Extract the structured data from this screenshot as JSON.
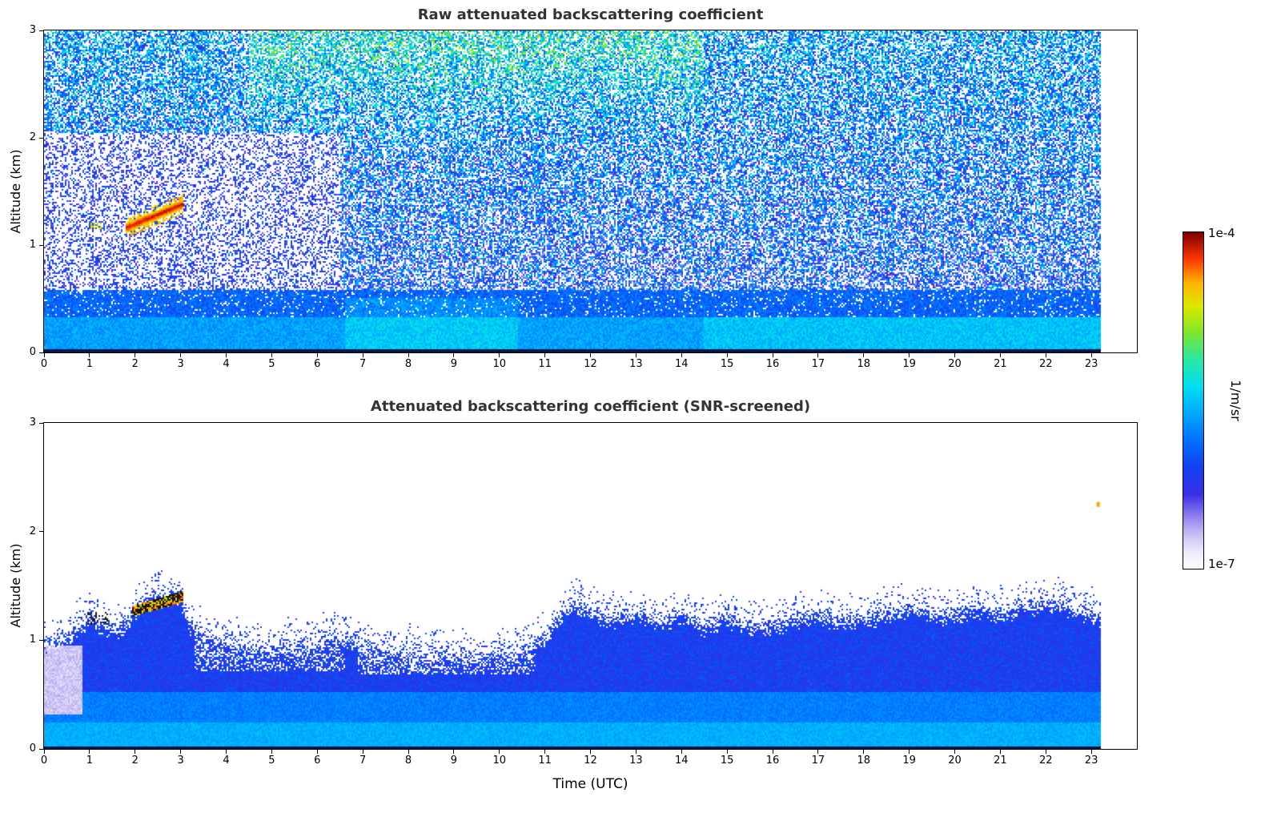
{
  "figure": {
    "background": "#ffffff",
    "colorbar": {
      "top_label": "1e-4",
      "bottom_label": "1e-7",
      "unit_label": "1/m/sr"
    }
  },
  "colormap": {
    "scale": "log",
    "vmin": 1e-07,
    "vmax": 0.0001,
    "stops": [
      [
        0.0,
        "#ffffff"
      ],
      [
        0.05,
        "#eceafb"
      ],
      [
        0.1,
        "#c8c0f4"
      ],
      [
        0.16,
        "#8a7aec"
      ],
      [
        0.22,
        "#3b2ee4"
      ],
      [
        0.3,
        "#1440f0"
      ],
      [
        0.38,
        "#0070ff"
      ],
      [
        0.46,
        "#00a8ff"
      ],
      [
        0.54,
        "#00ddf2"
      ],
      [
        0.62,
        "#2ae8a8"
      ],
      [
        0.7,
        "#7ce62e"
      ],
      [
        0.78,
        "#dce800"
      ],
      [
        0.85,
        "#ffb400"
      ],
      [
        0.92,
        "#ff3800"
      ],
      [
        1.0,
        "#7e0000"
      ]
    ]
  },
  "chart_data": [
    {
      "type": "heatmap",
      "title": "Raw attenuated backscattering coefficient",
      "xlabel": "",
      "ylabel": "Altitude (km)",
      "xlim": [
        0,
        24
      ],
      "ylim": [
        0,
        3
      ],
      "xticks": [
        0,
        1,
        2,
        3,
        4,
        5,
        6,
        7,
        8,
        9,
        10,
        11,
        12,
        13,
        14,
        15,
        16,
        17,
        18,
        19,
        20,
        21,
        22,
        23
      ],
      "yticks": [
        0,
        1,
        2,
        3
      ],
      "value_scale": {
        "type": "log",
        "min": "1e-7",
        "max": "1e-4",
        "unit": "1/m/sr"
      },
      "features": [
        "Noisy speckle field above the boundary layer, cyan-green toward the top, denser between 05-15 UTC",
        "Whiter sparse region with dark blue speckle for 00-06:30 UTC between 0.6 and 2 km",
        "Strong red/dark-red elevated layer rising from ~1.15 km at 01:50 UTC to ~1.4 km at 03:00 UTC",
        "Solid blue/cyan boundary layer below ~0.6 km all day; data end ~23:10 UTC"
      ],
      "render": {
        "seed": 1234,
        "cell": 2,
        "data_end": 23.2,
        "ground": {
          "dark_line_alt": 0.03,
          "band1_alt": 0.33,
          "band1_v": 0.45,
          "band2_alt": 0.58,
          "band2_v": 0.36,
          "bright_zones": [
            {
              "t0": 6.6,
              "t1": 10.4,
              "a": 0.5,
              "dv": 0.06
            },
            {
              "t0": 14.5,
              "t1": 23.2,
              "a": 0.33,
              "dv": 0.05
            }
          ]
        },
        "noise": {
          "base_p": 0.62,
          "col_var": 0.14,
          "c0": 0.3,
          "c_rise": 0.13,
          "spread": 0.2,
          "fleck_p": 0.012,
          "fleck_dv": 0.15,
          "sparse": {
            "t0": 0,
            "t1": 6.5,
            "a0": 0.58,
            "a1": 2.05,
            "p": 0.34,
            "c": 0.27,
            "spread": 0.1
          },
          "green": {
            "t0": 4.5,
            "t1": 14.5,
            "a0": 1.9,
            "dv": 0.12
          }
        },
        "plume": {
          "t0": 1.8,
          "t1": 3.05,
          "a0": 1.16,
          "a1": 1.38,
          "halfw": 0.05,
          "v_core": 0.97,
          "v_edge": 0.84
        },
        "streak": {
          "t0": 1.02,
          "t1": 1.25,
          "a": 1.18,
          "halfw": 0.025,
          "p": 0.5,
          "v": 0.8
        }
      }
    },
    {
      "type": "heatmap",
      "title": "Attenuated backscattering coefficient (SNR-screened)",
      "xlabel": "Time (UTC)",
      "ylabel": "Altitude (km)",
      "xlim": [
        0,
        24
      ],
      "ylim": [
        0,
        3
      ],
      "xticks": [
        0,
        1,
        2,
        3,
        4,
        5,
        6,
        7,
        8,
        9,
        10,
        11,
        12,
        13,
        14,
        15,
        16,
        17,
        18,
        19,
        20,
        21,
        22,
        23
      ],
      "yticks": [
        0,
        1,
        2,
        3
      ],
      "value_scale": {
        "type": "log",
        "min": "1e-7",
        "max": "1e-4",
        "unit": "1/m/sr"
      },
      "features": [
        "Screened field: white above the boundary layer",
        "Boundary-layer top ~0.9-1.0 km in the morning, dipping ~0.8 km near 07-10 UTC, rising to ~1.1-1.3 km after 11 UTC",
        "Black/dark elevated layer with yellow-green flecks from ~1.27 km at 02:00 UTC to ~1.4 km at 03:00 UTC",
        "Pale lavender low-signal patch near 00:00-00:50 UTC between 0.3 and 0.95 km",
        "Tiny orange speck near 23:10 UTC at ~2.25 km"
      ],
      "render": {
        "seed": 99,
        "cell": 2,
        "data_end": 23.2,
        "layer_top": {
          "t": [
            0,
            0.5,
            1,
            1.3,
            1.7,
            2,
            2.3,
            2.7,
            3,
            3.2,
            3.5,
            4,
            4.5,
            5,
            5.5,
            6,
            6.3,
            6.6,
            7,
            7.5,
            8,
            8.5,
            9,
            9.5,
            10,
            10.5,
            11,
            11.3,
            11.6,
            12,
            12.5,
            13,
            13.5,
            14,
            14.5,
            15,
            15.5,
            16,
            16.5,
            17,
            17.5,
            18,
            18.5,
            19,
            19.5,
            20,
            20.5,
            21,
            21.5,
            22,
            22.5,
            23,
            23.2
          ],
          "h": [
            0.95,
            1.0,
            1.2,
            1.12,
            1.08,
            1.25,
            1.38,
            1.4,
            1.36,
            1.12,
            1.02,
            0.98,
            0.92,
            0.9,
            0.95,
            0.92,
            1.05,
            1.0,
            0.95,
            0.88,
            0.9,
            0.85,
            0.88,
            0.82,
            0.86,
            0.9,
            1.0,
            1.18,
            1.3,
            1.25,
            1.18,
            1.22,
            1.15,
            1.22,
            1.12,
            1.18,
            1.1,
            1.12,
            1.18,
            1.22,
            1.15,
            1.18,
            1.22,
            1.28,
            1.22,
            1.22,
            1.28,
            1.22,
            1.28,
            1.32,
            1.28,
            1.22,
            1.2
          ]
        },
        "edge": {
          "jitter": 0.09,
          "speckle_band": 0.2,
          "speckle_p": 0.15
        },
        "bands": {
          "dark_line_alt": 0.02,
          "bottom_alt": 0.25,
          "bottom_v": 0.47,
          "mid_alt": 0.52,
          "mid_v": 0.4,
          "top_v": 0.29,
          "top_spread": 0.05
        },
        "holes": [
          {
            "t0": 3.3,
            "t1": 6.6,
            "a0": 0.72,
            "p": 0.3
          },
          {
            "t0": 6.9,
            "t1": 10.8,
            "a0": 0.68,
            "p": 0.35
          }
        ],
        "light_patch": {
          "t0": 0.0,
          "t1": 0.85,
          "a0": 0.32,
          "a1": 0.95,
          "v": 0.06,
          "spread": 0.06
        },
        "plume": {
          "t0": 1.95,
          "t1": 3.05,
          "a0": 1.27,
          "a1": 1.4,
          "halfw": 0.05,
          "dark_p": 0.55
        },
        "pre_specks": {
          "t0": 0.95,
          "t1": 1.4,
          "a": 1.2,
          "halfw": 0.06,
          "p": 0.3
        },
        "orange_dot": {
          "t": 23.15,
          "a": 2.25
        }
      }
    }
  ]
}
